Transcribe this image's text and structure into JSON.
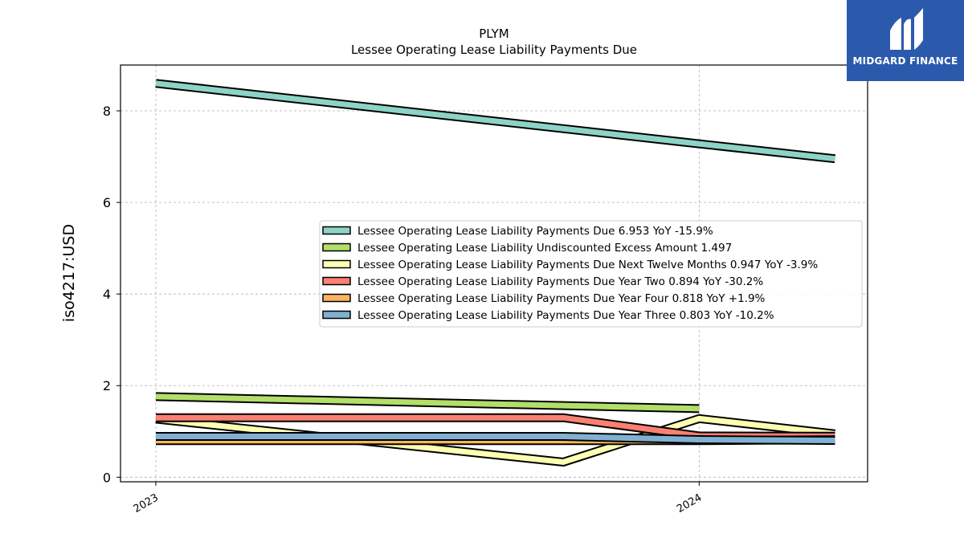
{
  "brand": {
    "name": "MIDGARD FINANCE",
    "bg_color": "#2b5aad"
  },
  "chart_data": {
    "type": "line",
    "title": "PLYM",
    "subtitle": "Lessee Operating Lease Liability Payments Due",
    "xlabel": "",
    "ylabel": "iso4217:USD",
    "x_ticks": [
      {
        "label": "2023",
        "value": 2023.0
      },
      {
        "label": "2024",
        "value": 2024.0
      }
    ],
    "xlim": [
      2022.935,
      2024.31
    ],
    "y_ticks": [
      0,
      2,
      4,
      6,
      8
    ],
    "ylim": [
      -0.1,
      9.0
    ],
    "grid": true,
    "legend_position": "center-right",
    "series": [
      {
        "name": "Lessee Operating Lease Liability Payments Due",
        "legend": "Lessee Operating Lease Liability Payments Due  6.953 YoY -15.9%",
        "color": "#8dd3c7",
        "points": [
          [
            2023.0,
            8.6
          ],
          [
            2024.0,
            7.28
          ],
          [
            2024.25,
            6.953
          ]
        ]
      },
      {
        "name": "Lessee Operating Lease Liability Undiscounted Excess Amount",
        "legend": "Lessee Operating Lease Liability Undiscounted Excess Amount  1.497",
        "color": "#b3de69",
        "points": [
          [
            2023.0,
            1.76
          ],
          [
            2024.0,
            1.497
          ]
        ]
      },
      {
        "name": "Lessee Operating Lease Liability Payments Due Next Twelve Months",
        "legend": "Lessee Operating Lease Liability Payments Due Next Twelve Months  0.947 YoY -3.9%",
        "color": "#ffffb3",
        "points": [
          [
            2023.0,
            1.27
          ],
          [
            2023.75,
            0.33
          ],
          [
            2024.0,
            1.28
          ],
          [
            2024.25,
            0.947
          ]
        ]
      },
      {
        "name": "Lessee Operating Lease Liability Payments Due Year Two",
        "legend": "Lessee Operating Lease Liability Payments Due Year Two  0.894 YoY -30.2%",
        "color": "#fb8072",
        "points": [
          [
            2023.0,
            1.3
          ],
          [
            2023.75,
            1.3
          ],
          [
            2024.0,
            0.9
          ],
          [
            2024.25,
            0.894
          ]
        ]
      },
      {
        "name": "Lessee Operating Lease Liability Payments Due Year Four",
        "legend": "Lessee Operating Lease Liability Payments Due Year Four  0.818 YoY +1.9%",
        "color": "#fdb462",
        "points": [
          [
            2023.0,
            0.8
          ],
          [
            2023.75,
            0.8
          ],
          [
            2024.0,
            0.8
          ],
          [
            2024.25,
            0.818
          ]
        ]
      },
      {
        "name": "Lessee Operating Lease Liability Payments Due Year Three",
        "legend": "Lessee Operating Lease Liability Payments Due Year Three  0.803 YoY -10.2%",
        "color": "#80b1d3",
        "points": [
          [
            2023.0,
            0.89
          ],
          [
            2023.75,
            0.89
          ],
          [
            2024.0,
            0.82
          ],
          [
            2024.25,
            0.803
          ]
        ]
      }
    ]
  }
}
